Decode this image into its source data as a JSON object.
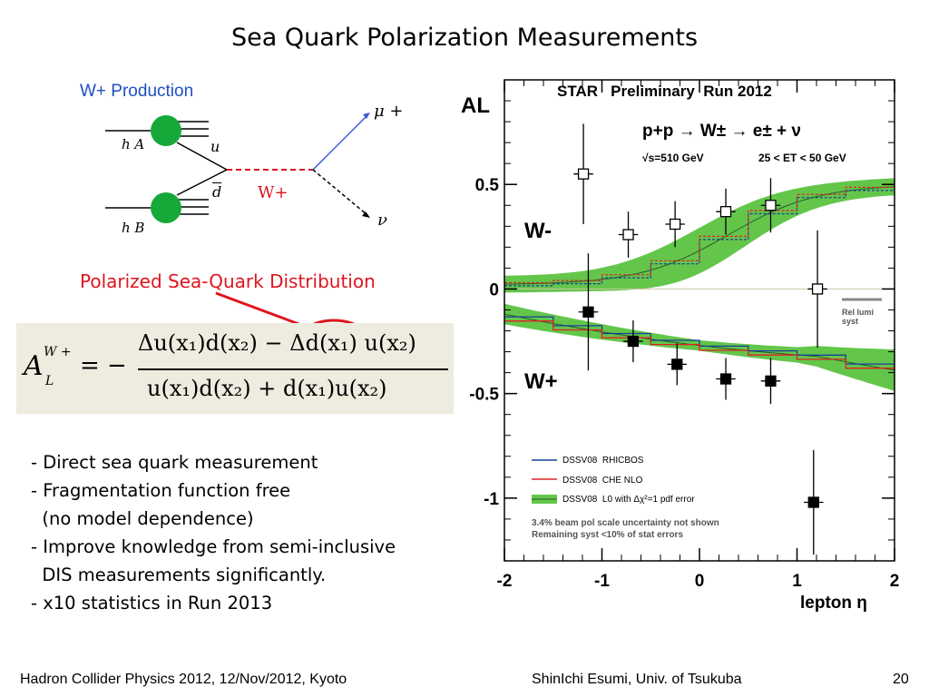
{
  "slide": {
    "title": "Sea Quark Polarization Measurements",
    "feynman": {
      "header": "W+ Production",
      "labels": {
        "ha": "h A",
        "hb": "h B",
        "u": "u",
        "dbar": "d",
        "w": "W+",
        "mu": "μ +",
        "nu": "ν"
      }
    },
    "annotation": "Polarized Sea-Quark Distribution",
    "formula": {
      "lhs": "A",
      "lhs_sup": "W +",
      "lhs_sub": "L",
      "eq": "= −",
      "numerator": "Δu(x₁)d(x₂) − Δd(x₁) u(x₂)",
      "denominator": "u(x₁)d(x₂) + d(x₁)u(x₂)"
    },
    "bullets": [
      "- Direct sea quark measurement",
      "- Fragmentation function free",
      "  (no model dependence)",
      "- Improve knowledge from semi-inclusive",
      "  DIS measurements significantly.",
      "- x10 statistics in Run 2013"
    ],
    "footer": {
      "left": "Hadron Collider Physics 2012, 12/Nov/2012, Kyoto",
      "center": "ShinIchi Esumi, Univ. of Tsukuba",
      "page": "20"
    },
    "colors": {
      "annotation": "#e0141e",
      "header": "#1f4fbf",
      "band": "#63c64a"
    }
  },
  "chart_data": {
    "type": "scatter",
    "title": "STAR   Preliminary  Run 2012",
    "reaction": "p+p → W± → e± + ν",
    "energy": "√s=510 GeV",
    "et_cut": "25 < ET < 50 GeV",
    "ylabel": "AL",
    "xlabel": "lepton η",
    "xlim": [
      -2,
      2
    ],
    "ylim": [
      -1.3,
      1.0
    ],
    "xticks": [
      "-2",
      "-1",
      "0",
      "1",
      "2"
    ],
    "yticks": [
      {
        "v": 0.5,
        "t": "0.5"
      },
      {
        "v": 0,
        "t": "0"
      },
      {
        "v": -0.5,
        "t": "-0.5"
      },
      {
        "v": -1,
        "t": "-1"
      }
    ],
    "rel_lumi_label": "Rel lumi\nsyst",
    "series": [
      {
        "name": "W-",
        "marker": "open-square",
        "points": [
          {
            "x": -1.19,
            "y": 0.55,
            "ey": 0.24,
            "ex": 0.1
          },
          {
            "x": -0.73,
            "y": 0.26,
            "ey": 0.11,
            "ex": 0.1
          },
          {
            "x": -0.25,
            "y": 0.31,
            "ey": 0.11,
            "ex": 0.1
          },
          {
            "x": 0.27,
            "y": 0.37,
            "ey": 0.11,
            "ex": 0.1
          },
          {
            "x": 0.73,
            "y": 0.4,
            "ey": 0.13,
            "ex": 0.1
          },
          {
            "x": 1.21,
            "y": 0.0,
            "ey": 0.28,
            "ex": 0.1
          }
        ]
      },
      {
        "name": "W+",
        "marker": "filled-square",
        "points": [
          {
            "x": -1.14,
            "y": -0.11,
            "ey": 0.28,
            "ex": 0.1
          },
          {
            "x": -0.68,
            "y": -0.25,
            "ey": 0.1,
            "ex": 0.1
          },
          {
            "x": -0.23,
            "y": -0.36,
            "ey": 0.1,
            "ex": 0.1
          },
          {
            "x": 0.27,
            "y": -0.43,
            "ey": 0.1,
            "ex": 0.1
          },
          {
            "x": 0.73,
            "y": -0.44,
            "ey": 0.11,
            "ex": 0.1
          },
          {
            "x": 1.17,
            "y": -1.02,
            "ey": 0.25,
            "ex": 0.1
          }
        ]
      }
    ],
    "legend": [
      {
        "name": "DSSV08  RHICBOS",
        "color": "#1a3e9c"
      },
      {
        "name": "DSSV08  CHE NLO",
        "color": "#e22020"
      },
      {
        "name": "DSSV08  L0 with Δχ²=1 pdf error",
        "color": "#63c64a"
      }
    ],
    "notes": [
      "3.4% beam pol scale uncertainty not shown",
      "Remaining syst <10% of stat errors"
    ],
    "series_labels": {
      "wminus": "W-",
      "wplus": "W+"
    }
  }
}
